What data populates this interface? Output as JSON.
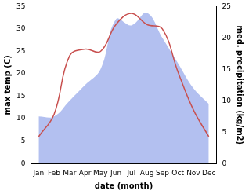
{
  "chart_data": {
    "type": "line",
    "categories": [
      "Jan",
      "Feb",
      "Mar",
      "Apr",
      "May",
      "Jun",
      "Jul",
      "Aug",
      "Sep",
      "Oct",
      "Nov",
      "Dec"
    ],
    "x_label": "date (month)",
    "y_label": "max temp (C)",
    "y2_label": "med. precipitation (kg/m2)",
    "ylim": [
      0,
      35
    ],
    "yticks": [
      0,
      5,
      10,
      15,
      20,
      25,
      30,
      35
    ],
    "y2lim": [
      0,
      25
    ],
    "y2ticks": [
      0,
      5,
      10,
      15,
      20,
      25
    ],
    "grid": false,
    "series": [
      {
        "type": "area",
        "axis": "y2",
        "color": "#b3c0f0",
        "values": [
          7.5,
          7.5,
          10,
          12.5,
          15,
          23,
          22,
          24,
          20,
          16,
          12,
          9.5
        ]
      },
      {
        "type": "line",
        "axis": "y",
        "color": "#c8504f",
        "values": [
          6,
          11,
          24,
          25.5,
          25,
          31,
          33.5,
          31,
          30,
          20.5,
          12,
          6
        ]
      }
    ]
  }
}
